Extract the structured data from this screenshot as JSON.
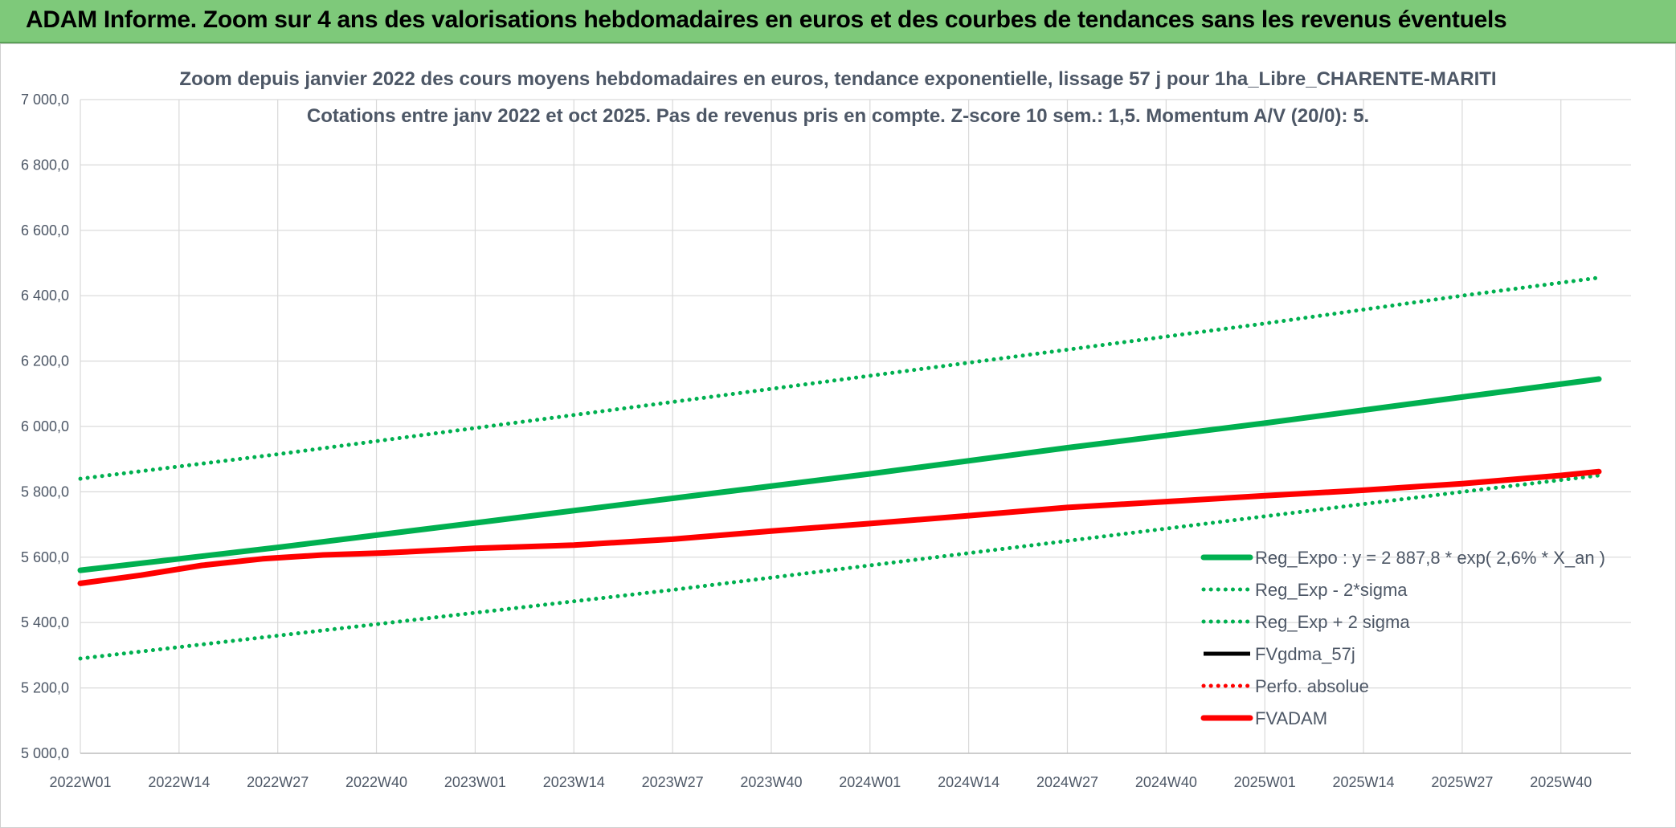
{
  "banner": {
    "title": "ADAM Informe. Zoom sur 4 ans des valorisations hebdomadaires en euros et des courbes de tendances sans les revenus éventuels"
  },
  "colors": {
    "banner_bg": "#7ec97a",
    "green": "#00b050",
    "red": "#ff0000",
    "black": "#000000",
    "grid": "#d9d9d9",
    "text": "#4d5766"
  },
  "chart_data": {
    "type": "line",
    "title_line1": "Zoom depuis janvier 2022 des cours moyens hebdomadaires en euros, tendance exponentielle, lissage 57 j pour 1ha_Libre_CHARENTE-MARITI",
    "title_line2": "Cotations entre janv 2022 et oct 2025. Pas de revenus pris en compte. Z-score 10 sem.: 1,5. Momentum A/V (20/0): 5.",
    "xlabel": "",
    "ylabel": "",
    "ylim": [
      5000,
      7000
    ],
    "grid": true,
    "legend_position": "right",
    "y_ticks": [
      "5 000,0",
      "5 200,0",
      "5 400,0",
      "5 600,0",
      "5 800,0",
      "6 000,0",
      "6 200,0",
      "6 400,0",
      "6 600,0",
      "6 800,0",
      "7 000,0"
    ],
    "y_tick_values": [
      5000,
      5200,
      5400,
      5600,
      5800,
      6000,
      6200,
      6400,
      6600,
      6800,
      7000
    ],
    "x_ticks": [
      "2022W01",
      "2022W14",
      "2022W27",
      "2022W40",
      "2023W01",
      "2023W14",
      "2023W27",
      "2023W40",
      "2024W01",
      "2024W14",
      "2024W27",
      "2024W40",
      "2025W01",
      "2025W14",
      "2025W27",
      "2025W40"
    ],
    "x_tick_weeks": [
      0,
      13,
      26,
      39,
      52,
      65,
      78,
      91,
      104,
      117,
      130,
      143,
      156,
      169,
      182,
      195
    ],
    "x_end_week": 200,
    "series": [
      {
        "name": "Reg_Expo : y = 2 887,8 * exp( 2,6% *  X_an )",
        "style": "solid-thick",
        "color": "#00b050",
        "weeks": [
          0,
          26,
          52,
          78,
          104,
          130,
          156,
          182,
          200
        ],
        "values": [
          5560,
          5630,
          5705,
          5780,
          5855,
          5935,
          6010,
          6090,
          6145
        ]
      },
      {
        "name": "Reg_Exp - 2*sigma",
        "style": "dotted",
        "color": "#00b050",
        "weeks": [
          0,
          26,
          52,
          78,
          104,
          130,
          156,
          182,
          200
        ],
        "values": [
          5290,
          5360,
          5430,
          5500,
          5575,
          5650,
          5725,
          5800,
          5850
        ]
      },
      {
        "name": "Reg_Exp + 2 sigma",
        "style": "dotted",
        "color": "#00b050",
        "weeks": [
          0,
          26,
          52,
          78,
          104,
          130,
          156,
          182,
          200
        ],
        "values": [
          5840,
          5915,
          5995,
          6075,
          6155,
          6235,
          6315,
          6400,
          6455
        ]
      },
      {
        "name": "FVgdma_57j",
        "style": "solid",
        "color": "#000000",
        "weeks": [
          0,
          8,
          16,
          24,
          32,
          40,
          52,
          65,
          78,
          91,
          104,
          117,
          130,
          143,
          156,
          169,
          182,
          195,
          200
        ],
        "values": [
          5520,
          5545,
          5575,
          5595,
          5607,
          5613,
          5627,
          5637,
          5655,
          5680,
          5703,
          5727,
          5752,
          5770,
          5788,
          5805,
          5825,
          5850,
          5862
        ]
      },
      {
        "name": "Perfo. absolue",
        "style": "dotted",
        "color": "#ff0000",
        "weeks": [
          0,
          8,
          16,
          24,
          32,
          40,
          52,
          65,
          78,
          91,
          104,
          117,
          130,
          143,
          156,
          169,
          182,
          195,
          200
        ],
        "values": [
          5520,
          5545,
          5575,
          5595,
          5607,
          5613,
          5627,
          5637,
          5655,
          5680,
          5703,
          5727,
          5752,
          5770,
          5788,
          5805,
          5825,
          5850,
          5862
        ]
      },
      {
        "name": "FVADAM",
        "style": "solid-thick",
        "color": "#ff0000",
        "weeks": [
          0,
          8,
          16,
          24,
          32,
          40,
          52,
          65,
          78,
          91,
          104,
          117,
          130,
          143,
          156,
          169,
          182,
          195,
          200
        ],
        "values": [
          5520,
          5545,
          5575,
          5595,
          5607,
          5613,
          5627,
          5637,
          5655,
          5680,
          5703,
          5727,
          5752,
          5770,
          5788,
          5805,
          5825,
          5850,
          5862
        ]
      }
    ]
  }
}
